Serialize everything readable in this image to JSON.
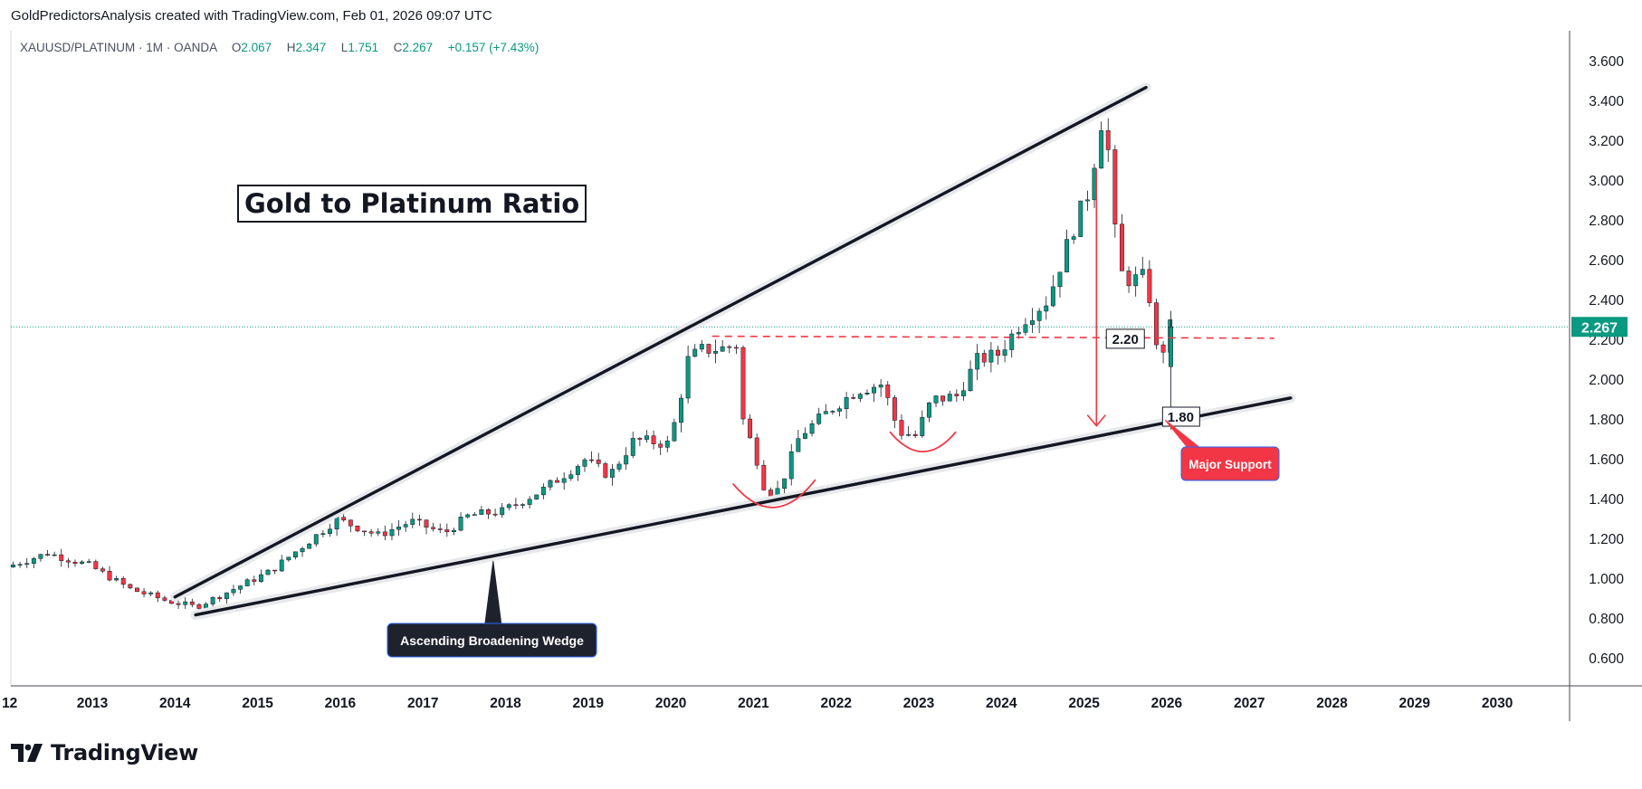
{
  "header": {
    "attribution": "GoldPredictorsAnalysis created with TradingView.com, Feb 01, 2026 09:07 UTC"
  },
  "legend": {
    "symbol": "XAUUSD/PLATINUM",
    "interval": "1M",
    "exchange": "OANDA",
    "open_label": "O",
    "open": "2.067",
    "high_label": "H",
    "high": "2.347",
    "low_label": "L",
    "low": "1.751",
    "close_label": "C",
    "close": "2.267",
    "change": "+0.157",
    "change_pct": "(+7.43%)"
  },
  "branding": {
    "logo_text": "TradingView"
  },
  "colors": {
    "up": "#089981",
    "down": "#f23645",
    "price_tag": "#089981",
    "annotation_red": "#f23645",
    "trendline": "#131722",
    "callout_dark": "#1e222d",
    "callout_border": "#2962ff"
  },
  "icons": {
    "logo": "tradingview-logo-icon"
  },
  "chart_data": {
    "type": "candlestick",
    "title": "Gold to Platinum Ratio",
    "x_tick_labels": [
      "12",
      "2013",
      "2014",
      "2015",
      "2016",
      "2017",
      "2018",
      "2019",
      "2020",
      "2021",
      "2022",
      "2023",
      "2024",
      "2025",
      "2026",
      "2027",
      "2028",
      "2029",
      "2030"
    ],
    "y_tick_labels": [
      "3.600",
      "3.400",
      "3.200",
      "3.000",
      "2.800",
      "2.600",
      "2.400",
      "2.200",
      "2.000",
      "1.800",
      "1.600",
      "1.400",
      "1.200",
      "1.000",
      "0.800",
      "0.600"
    ],
    "ylim": [
      0.5,
      3.7
    ],
    "xlim": [
      2012.0,
      2030.9
    ],
    "current_price": {
      "value": 2.267,
      "label": "2.267"
    },
    "anchors": [
      [
        2012.0,
        1.06
      ],
      [
        2012.5,
        1.13
      ],
      [
        2013.0,
        1.07
      ],
      [
        2013.5,
        0.95
      ],
      [
        2013.95,
        0.89
      ],
      [
        2014.3,
        0.86
      ],
      [
        2014.8,
        0.96
      ],
      [
        2015.2,
        1.04
      ],
      [
        2015.6,
        1.17
      ],
      [
        2016.0,
        1.3
      ],
      [
        2016.5,
        1.22
      ],
      [
        2016.9,
        1.29
      ],
      [
        2017.3,
        1.23
      ],
      [
        2017.6,
        1.32
      ],
      [
        2018.0,
        1.34
      ],
      [
        2018.5,
        1.45
      ],
      [
        2019.0,
        1.6
      ],
      [
        2019.3,
        1.52
      ],
      [
        2019.6,
        1.7
      ],
      [
        2020.0,
        1.68
      ],
      [
        2020.1,
        1.8
      ],
      [
        2020.25,
        2.1
      ],
      [
        2020.4,
        2.15
      ],
      [
        2020.7,
        2.16
      ],
      [
        2020.85,
        2.18
      ],
      [
        2020.9,
        1.82
      ],
      [
        2021.1,
        1.58
      ],
      [
        2021.2,
        1.42
      ],
      [
        2021.35,
        1.45
      ],
      [
        2021.6,
        1.72
      ],
      [
        2022.0,
        1.86
      ],
      [
        2022.3,
        1.95
      ],
      [
        2022.6,
        1.98
      ],
      [
        2022.8,
        1.74
      ],
      [
        2023.0,
        1.72
      ],
      [
        2023.2,
        1.9
      ],
      [
        2023.5,
        1.92
      ],
      [
        2023.75,
        2.1
      ],
      [
        2024.0,
        2.13
      ],
      [
        2024.3,
        2.3
      ],
      [
        2024.6,
        2.4
      ],
      [
        2024.9,
        2.75
      ],
      [
        2025.1,
        2.95
      ],
      [
        2025.25,
        3.3
      ],
      [
        2025.35,
        3.12
      ],
      [
        2025.45,
        2.55
      ],
      [
        2025.6,
        2.5
      ],
      [
        2025.8,
        2.52
      ],
      [
        2025.95,
        2.05
      ],
      [
        2026.05,
        2.267
      ]
    ],
    "last_candle": {
      "x": 2026.05,
      "open": 2.067,
      "high": 2.347,
      "low": 1.751,
      "close": 2.267
    },
    "annotations": {
      "upper_trendline": {
        "from": [
          2014.0,
          0.91
        ],
        "to": [
          2025.75,
          3.47
        ]
      },
      "lower_trendline": {
        "from": [
          2014.25,
          0.82
        ],
        "to": [
          2027.5,
          1.91
        ]
      },
      "resistance_line": {
        "from": [
          2020.5,
          2.22
        ],
        "to": [
          2027.3,
          2.21
        ],
        "label": "2.20"
      },
      "support_point": {
        "x": 2025.95,
        "y": 1.8,
        "label": "1.80"
      },
      "target_arrow": {
        "x": 2025.15,
        "from": 3.06,
        "to": 1.77
      },
      "arcs": [
        {
          "from": [
            2020.75,
            1.48
          ],
          "bottom": [
            2021.25,
            1.36
          ],
          "to": [
            2021.75,
            1.5
          ]
        },
        {
          "from": [
            2022.65,
            1.74
          ],
          "bottom": [
            2023.05,
            1.64
          ],
          "to": [
            2023.45,
            1.74
          ]
        }
      ],
      "callouts": [
        {
          "text": "Ascending Broadening Wedge",
          "anchor": [
            2017.85,
            1.09
          ]
        },
        {
          "text": "Major Support",
          "anchor": [
            2025.98,
            1.8
          ]
        }
      ]
    }
  }
}
